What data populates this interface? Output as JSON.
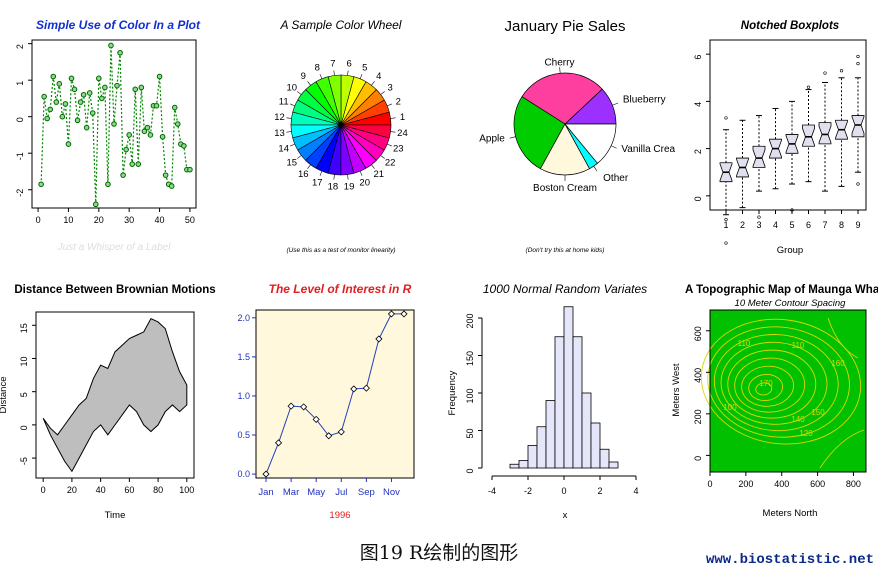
{
  "figure_caption": "图19 R绘制的图形",
  "watermark": "www.biostatistic.net",
  "chart_data": [
    {
      "type": "scatter",
      "title": "Simple Use of Color In a Plot",
      "subtitle": "Just a Whisper of a Label",
      "xticks": [
        "0",
        "10",
        "20",
        "30",
        "40",
        "50"
      ],
      "yticks": [
        "-2",
        "-1",
        "0",
        "1",
        "2"
      ],
      "xlim": [
        0,
        50
      ],
      "ylim": [
        -2.5,
        2.1
      ],
      "x": [
        1,
        2,
        3,
        4,
        5,
        6,
        7,
        8,
        9,
        10,
        11,
        12,
        13,
        14,
        15,
        16,
        17,
        18,
        19,
        20,
        21,
        22,
        23,
        24,
        25,
        26,
        27,
        28,
        29,
        30,
        31,
        32,
        33,
        34,
        35,
        36,
        37,
        38,
        39,
        40,
        41,
        42,
        43,
        44,
        45,
        46,
        47,
        48,
        49,
        50
      ],
      "values": [
        -1.85,
        0.55,
        -0.05,
        0.2,
        1.1,
        0.4,
        0.9,
        0.0,
        0.35,
        -0.75,
        1.05,
        0.75,
        -0.1,
        0.4,
        0.6,
        -0.3,
        0.65,
        0.1,
        -2.4,
        1.05,
        0.5,
        0.8,
        -1.85,
        1.95,
        -0.2,
        0.85,
        1.75,
        -1.6,
        -0.9,
        -0.5,
        -1.3,
        0.75,
        -1.3,
        0.8,
        -0.4,
        -0.3,
        -0.5,
        0.3,
        0.3,
        1.1,
        -0.55,
        -1.6,
        -1.85,
        -1.9,
        0.25,
        -0.2,
        -0.75,
        -0.8,
        -1.45,
        -1.45
      ],
      "line_color": "#008800",
      "point_color": "#006400",
      "title_color": "#1030d0",
      "subtitle_color": "#dddddd"
    },
    {
      "type": "pie",
      "title": "A Sample Color Wheel",
      "subtitle": "(Use this as a test of monitor linearity)",
      "labels": [
        "1",
        "2",
        "3",
        "4",
        "5",
        "6",
        "7",
        "8",
        "9",
        "10",
        "11",
        "12",
        "13",
        "14",
        "15",
        "16",
        "17",
        "18",
        "19",
        "20",
        "21",
        "22",
        "23",
        "24"
      ]
    },
    {
      "type": "pie",
      "title": "January Pie Sales",
      "subtitle": "(Don't try this at home kids)",
      "labels": [
        "Blueberry",
        "Cherry",
        "Apple",
        "Boston Cream",
        "Other",
        "Vanilla Crea"
      ],
      "values": [
        0.12,
        0.29,
        0.26,
        0.16,
        0.03,
        0.14
      ],
      "colors": [
        "#9b30ff",
        "#ff3fa0",
        "#00cc00",
        "#fff8dc",
        "#00ffff",
        "#ffffff"
      ]
    },
    {
      "type": "boxplot",
      "title": "Notched Boxplots",
      "xlabel": "Group",
      "xticks": [
        "1",
        "2",
        "3",
        "4",
        "5",
        "6",
        "7",
        "8",
        "9"
      ],
      "yticks": [
        "0",
        "2",
        "4",
        "6"
      ],
      "ylim": [
        -0.6,
        6.6
      ],
      "boxes": [
        {
          "q1": 0.6,
          "med": 1.0,
          "q3": 1.4,
          "lo": -0.8,
          "hi": 2.8
        },
        {
          "q1": 0.8,
          "med": 1.2,
          "q3": 1.6,
          "lo": -0.5,
          "hi": 3.2
        },
        {
          "q1": 1.2,
          "med": 1.6,
          "q3": 2.1,
          "lo": 0.2,
          "hi": 3.4
        },
        {
          "q1": 1.6,
          "med": 2.0,
          "q3": 2.4,
          "lo": 0.3,
          "hi": 3.7
        },
        {
          "q1": 1.8,
          "med": 2.2,
          "q3": 2.6,
          "lo": 0.5,
          "hi": 4.0
        },
        {
          "q1": 2.1,
          "med": 2.5,
          "q3": 3.0,
          "lo": 0.6,
          "hi": 4.5
        },
        {
          "q1": 2.2,
          "med": 2.6,
          "q3": 3.1,
          "lo": 0.2,
          "hi": 4.8
        },
        {
          "q1": 2.4,
          "med": 2.8,
          "q3": 3.2,
          "lo": 0.4,
          "hi": 5.0
        },
        {
          "q1": 2.5,
          "med": 3.0,
          "q3": 3.4,
          "lo": 1.0,
          "hi": 5.0
        }
      ],
      "outliers": [
        [
          1,
          -1.0
        ],
        [
          1,
          -2.0
        ],
        [
          1,
          3.3
        ],
        [
          3,
          -0.9
        ],
        [
          5,
          -0.6
        ],
        [
          6,
          4.6
        ],
        [
          7,
          5.2
        ],
        [
          8,
          5.3
        ],
        [
          9,
          5.9
        ],
        [
          9,
          5.6
        ],
        [
          9,
          0.5
        ]
      ]
    },
    {
      "type": "area",
      "title": "Distance Between Brownian Motions",
      "xlabel": "Time",
      "ylabel": "Distance",
      "xticks": [
        "0",
        "20",
        "40",
        "60",
        "80",
        "100"
      ],
      "yticks": [
        "-5",
        "0",
        "5",
        "10",
        "15"
      ],
      "xlim": [
        0,
        100
      ],
      "ylim": [
        -8,
        17
      ],
      "x": [
        0,
        5,
        10,
        15,
        20,
        25,
        30,
        35,
        40,
        45,
        50,
        55,
        60,
        65,
        70,
        75,
        80,
        85,
        90,
        95,
        100
      ],
      "upper": [
        1.0,
        -0.5,
        -1.5,
        0.0,
        1.5,
        3.0,
        4.0,
        7.0,
        9.0,
        8.5,
        11.0,
        12.0,
        13.0,
        13.5,
        14.0,
        16.0,
        15.5,
        14.5,
        11.0,
        8.0,
        6.0
      ],
      "lower": [
        1.0,
        -1.5,
        -3.5,
        -5.5,
        -7.0,
        -5.0,
        -3.0,
        -1.0,
        0.0,
        -1.5,
        0.0,
        1.5,
        3.0,
        2.0,
        0.0,
        -1.0,
        0.0,
        2.0,
        3.0,
        2.0,
        3.0
      ],
      "fill": "#bebebe"
    },
    {
      "type": "line",
      "title": "The Level of Interest in R",
      "xlabel": "1996",
      "categories": [
        "Jan",
        "Feb",
        "Mar",
        "Apr",
        "May",
        "Jun",
        "Jul",
        "Aug",
        "Sep",
        "Oct",
        "Nov",
        "Dec"
      ],
      "xticks": [
        "Jan",
        "Mar",
        "May",
        "Jul",
        "Sep",
        "Nov"
      ],
      "yticks": [
        "0.0",
        "0.5",
        "1.0",
        "1.5",
        "2.0"
      ],
      "ylim": [
        -0.05,
        2.1
      ],
      "values": [
        0.0,
        0.4,
        0.87,
        0.86,
        0.7,
        0.49,
        0.54,
        1.09,
        1.1,
        1.73,
        2.05,
        2.05
      ],
      "background": "#fff8dc",
      "line_color": "#2040c0",
      "title_color": "#e02020",
      "axis_color": "#2030c0"
    },
    {
      "type": "bar",
      "title": "1000 Normal Random Variates",
      "xlabel": "x",
      "ylabel": "Frequency",
      "xticks": [
        "-4",
        "-2",
        "0",
        "2",
        "4"
      ],
      "yticks": [
        "0",
        "50",
        "100",
        "150",
        "200"
      ],
      "xlim": [
        -4,
        4
      ],
      "ylim": [
        0,
        200
      ],
      "bin_edges": [
        -3.0,
        -2.5,
        -2.0,
        -1.5,
        -1.0,
        -0.5,
        0.0,
        0.5,
        1.0,
        1.5,
        2.0,
        2.5,
        3.0
      ],
      "values": [
        5,
        10,
        30,
        55,
        90,
        175,
        215,
        175,
        100,
        60,
        25,
        8
      ],
      "fill": "#e6e6fa"
    },
    {
      "type": "heatmap",
      "title": "A Topographic Map of Maunga Whau",
      "subtitle": "10 Meter Contour Spacing",
      "xlabel": "Meters North",
      "ylabel": "Meters West",
      "xticks": [
        "0",
        "200",
        "400",
        "600",
        "800"
      ],
      "yticks": [
        "0",
        "200",
        "400",
        "600"
      ],
      "xlim": [
        0,
        870
      ],
      "ylim": [
        -80,
        700
      ],
      "contour_labels": [
        "110",
        "110",
        "160",
        "150",
        "140",
        "120",
        "170",
        "100"
      ],
      "background": "#00c000",
      "contour_color": "#d8d800"
    }
  ]
}
